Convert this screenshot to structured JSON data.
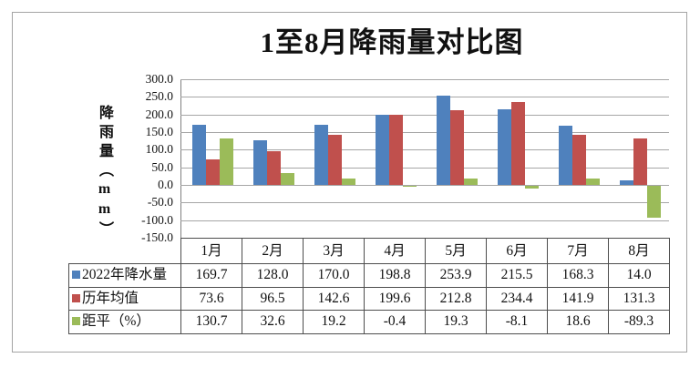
{
  "title": "1至8月降雨量对比图",
  "y_axis": {
    "label": "降雨量（mm）",
    "ticks": [
      "300.0",
      "250.0",
      "200.0",
      "150.0",
      "100.0",
      "50.0",
      "0.0",
      "-50.0",
      "-100.0",
      "-150.0"
    ],
    "max": 300,
    "min": -150,
    "step": 50
  },
  "chart_data": {
    "type": "bar",
    "title": "1至8月降雨量对比图",
    "ylabel": "降雨量（mm）",
    "ylim": [
      -150,
      300
    ],
    "grid": true,
    "legend_position": "table-row-headers",
    "categories": [
      "1月",
      "2月",
      "3月",
      "4月",
      "5月",
      "6月",
      "7月",
      "8月"
    ],
    "series": [
      {
        "name": "2022年降水量",
        "color": "#4F81BD",
        "values": [
          169.7,
          128.0,
          170.0,
          198.8,
          253.9,
          215.5,
          168.3,
          14.0
        ]
      },
      {
        "name": "历年均值",
        "color": "#C0504D",
        "values": [
          73.6,
          96.5,
          142.6,
          199.6,
          212.8,
          234.4,
          141.9,
          131.3
        ]
      },
      {
        "name": "距平（%）",
        "color": "#9BBB59",
        "values": [
          130.7,
          32.6,
          19.2,
          -0.4,
          19.3,
          -8.1,
          18.6,
          -89.3
        ]
      }
    ]
  },
  "table": {
    "columns": [
      "1月",
      "2月",
      "3月",
      "4月",
      "5月",
      "6月",
      "7月",
      "8月"
    ],
    "rows": [
      {
        "label": "2022年降水量",
        "swatch_color": "#4F81BD",
        "values": [
          "169.7",
          "128.0",
          "170.0",
          "198.8",
          "253.9",
          "215.5",
          "168.3",
          "14.0"
        ]
      },
      {
        "label": "历年均值",
        "swatch_color": "#C0504D",
        "values": [
          "73.6",
          "96.5",
          "142.6",
          "199.6",
          "212.8",
          "234.4",
          "141.9",
          "131.3"
        ]
      },
      {
        "label": "距平（%）",
        "swatch_color": "#9BBB59",
        "values": [
          "130.7",
          "32.6",
          "19.2",
          "-0.4",
          "19.3",
          "-8.1",
          "18.6",
          "-89.3"
        ]
      }
    ]
  }
}
